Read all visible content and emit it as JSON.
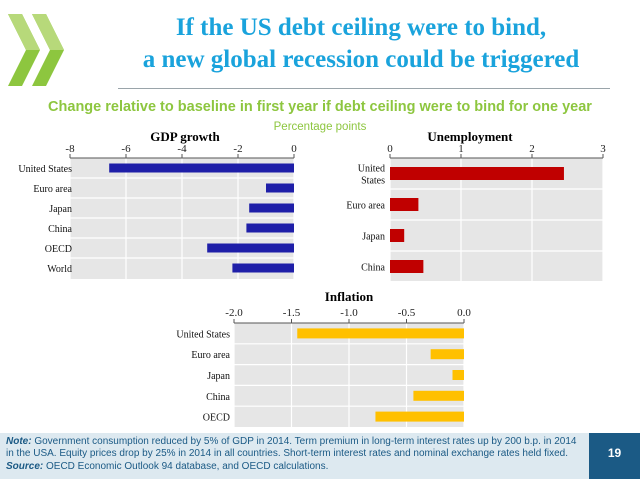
{
  "slide": {
    "title_line1": "If the US debt ceiling were to bind,",
    "title_line2": "a new global recession could be triggered",
    "subtitle": "Change relative to baseline in first year if debt ceiling were to bind for one year",
    "units": "Percentage points",
    "note_label": "Note:",
    "note_text": "Government consumption reduced by 5% of GDP in 2014. Term premium in long-term interest rates up by 200 b.p. in 2014 in the USA. Equity prices drop by 25% in 2014 in all countries. Short-term interest rates and nominal exchange rates held fixed.",
    "source_label": "Source:",
    "source_text": "OECD Economic Outlook 94 database, and OECD calculations.",
    "page_number": "19"
  },
  "colors": {
    "title": "#1aa3dc",
    "subtitle": "#8dc63f",
    "gdp_bar": "#1f1fa8",
    "unemployment_bar": "#c00000",
    "inflation_bar": "#ffc000",
    "plot_bg": "#e6e6e6",
    "footer_bg": "#dde9f0",
    "page_badge": "#1b5a85"
  },
  "chart_data": [
    {
      "id": "gdp",
      "type": "bar",
      "orientation": "horizontal",
      "title": "GDP growth",
      "categories": [
        "United States",
        "Euro area",
        "Japan",
        "China",
        "OECD",
        "World"
      ],
      "values": [
        -6.6,
        -1.0,
        -1.6,
        -1.7,
        -3.1,
        -2.2
      ],
      "xlim": [
        -8,
        0
      ],
      "ticks": [
        -8,
        -6,
        -4,
        -2,
        0
      ],
      "tick_labels": [
        "-8",
        "-6",
        "-4",
        "-2",
        "0"
      ],
      "grid": true,
      "color": "#1f1fa8"
    },
    {
      "id": "unemployment",
      "type": "bar",
      "orientation": "horizontal",
      "title": "Unemployment",
      "categories": [
        "United States",
        "Euro area",
        "Japan",
        "China"
      ],
      "category_lines": [
        [
          "United",
          "States"
        ],
        [
          "Euro area"
        ],
        [
          "Japan"
        ],
        [
          "China"
        ]
      ],
      "values": [
        2.45,
        0.4,
        0.2,
        0.47
      ],
      "xlim": [
        0,
        3
      ],
      "ticks": [
        0,
        1,
        2,
        3
      ],
      "tick_labels": [
        "0",
        "1",
        "2",
        "3"
      ],
      "grid": true,
      "color": "#c00000"
    },
    {
      "id": "inflation",
      "type": "bar",
      "orientation": "horizontal",
      "title": "Inflation",
      "categories": [
        "United States",
        "Euro area",
        "Japan",
        "China",
        "OECD"
      ],
      "values": [
        -1.45,
        -0.29,
        -0.1,
        -0.44,
        -0.77
      ],
      "xlim": [
        -2.0,
        0.0
      ],
      "ticks": [
        -2.0,
        -1.5,
        -1.0,
        -0.5,
        0.0
      ],
      "tick_labels": [
        "-2.0",
        "-1.5",
        "-1.0",
        "-0.5",
        "0.0"
      ],
      "grid": true,
      "color": "#ffc000"
    }
  ]
}
